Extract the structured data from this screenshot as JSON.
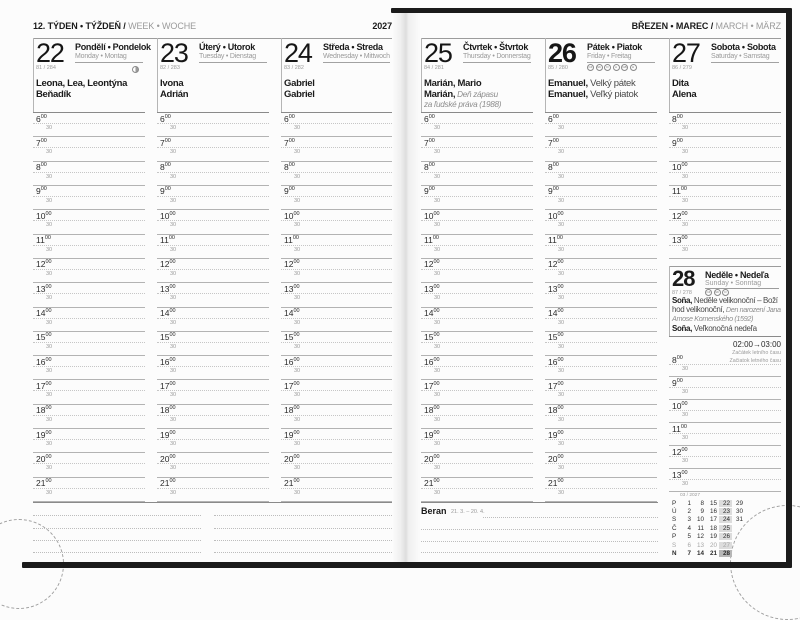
{
  "grid": {
    "half_label": "30",
    "sup_label": "00"
  },
  "page_left": {
    "header": {
      "week_bold": "12. TÝDEN • TÝŽDEŇ /",
      "week_light": " WEEK • WOCHE",
      "year": "2027"
    },
    "days": [
      {
        "number": "22",
        "title_local": "Pondělí • Pondelok",
        "title_intl": "Monday • Montag",
        "day_of_year": "81 / 284",
        "moon_phase": true,
        "name_days": [
          [
            {
              "t": "Leona, Lea, Leontýna",
              "s": "b"
            }
          ],
          [
            {
              "t": "Beňadík",
              "s": "b"
            }
          ]
        ],
        "hours": {
          "from": 6,
          "to": 21
        }
      },
      {
        "number": "23",
        "title_local": "Úterý • Utorok",
        "title_intl": "Tuesday • Dienstag",
        "day_of_year": "82 / 283",
        "name_days": [
          [
            {
              "t": "Ivona",
              "s": "b"
            }
          ],
          [
            {
              "t": "Adrián",
              "s": "b"
            }
          ]
        ],
        "hours": {
          "from": 6,
          "to": 21
        }
      },
      {
        "number": "24",
        "title_local": "Středa • Streda",
        "title_intl": "Wednesday • Mittwoch",
        "day_of_year": "83 / 282",
        "name_days": [
          [
            {
              "t": "Gabriel",
              "s": "b"
            }
          ],
          [
            {
              "t": "Gabriel",
              "s": "b"
            }
          ]
        ],
        "hours": {
          "from": 6,
          "to": 21
        }
      }
    ]
  },
  "page_right": {
    "header": {
      "month_bold": "BŘEZEN • MAREC /",
      "month_light": " MARCH • MÄRZ"
    },
    "days": [
      {
        "number": "25",
        "title_local": "Čtvrtek • Štvrtok",
        "title_intl": "Thursday • Donnerstag",
        "day_of_year": "84 / 281",
        "name_days": [
          [
            {
              "t": "Marián, Mario",
              "s": "b"
            }
          ],
          [
            {
              "t": "Marián,",
              "s": "b"
            },
            {
              "t": " Deň zápasu",
              "s": "i"
            }
          ],
          [
            {
              "t": "za ľudské práva (1988)",
              "s": "i"
            }
          ]
        ],
        "hours": {
          "from": 6,
          "to": 21
        }
      },
      {
        "number": "26",
        "holiday": true,
        "title_local": "Pátek • Piatok",
        "title_intl": "Friday • Freitag",
        "day_of_year": "85 / 280",
        "country_badges": [
          "CZ",
          "SK",
          "D",
          "A",
          "GB",
          "H"
        ],
        "name_days": [
          [
            {
              "t": "Emanuel,",
              "s": "b"
            },
            {
              "t": " Velký pátek",
              "s": "g"
            }
          ],
          [
            {
              "t": "Emanuel,",
              "s": "b"
            },
            {
              "t": " Veľký piatok",
              "s": "g"
            }
          ]
        ],
        "hours": {
          "from": 6,
          "to": 21
        }
      },
      {
        "number": "27",
        "title_local": "Sobota • Sobota",
        "title_intl": "Saturday • Samstag",
        "day_of_year": "86 / 279",
        "name_days": [
          [
            {
              "t": "Dita",
              "s": "b"
            }
          ],
          [
            {
              "t": "Alena",
              "s": "b"
            }
          ]
        ],
        "hours": {
          "from": 8,
          "to": 13
        }
      }
    ],
    "sunday": {
      "number": "28",
      "holiday": true,
      "title_local": "Neděle • Nedeľa",
      "title_intl": "Sunday • Sonntag",
      "day_of_year": "87 / 278",
      "country_badges": [
        "CZ",
        "SK",
        "D"
      ],
      "name_days": [
        [
          {
            "t": "Soňa,",
            "s": "b"
          },
          {
            "t": " Neděle velikonoční – Boží",
            "s": "g"
          }
        ],
        [
          {
            "t": "hod velikonoční,",
            "s": "g"
          },
          {
            "t": " Den narození Jana",
            "s": "i"
          }
        ],
        [
          {
            "t": "Amose Komenského (1592)",
            "s": "i"
          }
        ],
        [
          {
            "t": "Soňa,",
            "s": "b"
          },
          {
            "t": " Veľkonočná nedeľa",
            "s": "g"
          }
        ]
      ],
      "hours": {
        "from": 8,
        "to": 13
      }
    },
    "dst_note": {
      "time": "02:00→03:00",
      "line1": "Začátek letního času",
      "line2": "Začiatok letného času"
    },
    "zodiac": {
      "name": "Beran",
      "range": "21. 3. – 20. 4."
    },
    "mini_calendar": {
      "header": "03 / 2027",
      "highlight_index": 3,
      "rows": [
        {
          "label": "P",
          "values": [
            "1",
            "8",
            "15",
            "22",
            "29"
          ]
        },
        {
          "label": "Ú",
          "values": [
            "2",
            "9",
            "16",
            "23",
            "30"
          ]
        },
        {
          "label": "S",
          "values": [
            "3",
            "10",
            "17",
            "24",
            "31"
          ]
        },
        {
          "label": "Č",
          "values": [
            "4",
            "11",
            "18",
            "25",
            ""
          ]
        },
        {
          "label": "P",
          "values": [
            "5",
            "12",
            "19",
            "26",
            ""
          ]
        },
        {
          "label": "S",
          "gray": true,
          "values": [
            "6",
            "13",
            "20",
            "27",
            ""
          ]
        },
        {
          "label": "N",
          "bold": true,
          "values": [
            "7",
            "14",
            "21",
            "28",
            ""
          ]
        }
      ]
    }
  }
}
